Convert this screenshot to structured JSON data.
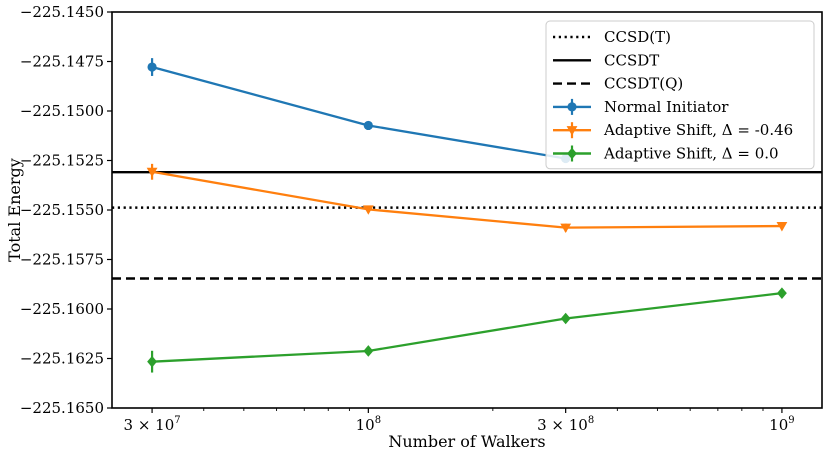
{
  "chart_data": {
    "type": "line",
    "xlabel": "Number of Walkers",
    "ylabel": "Total Energy",
    "x_scale": "log",
    "xlim": [
      24000000,
      1250000000
    ],
    "ylim": [
      -225.165,
      -225.145
    ],
    "x_ticks": [
      {
        "value": 30000000,
        "label": "3 × 10^7"
      },
      {
        "value": 100000000,
        "label": "10^8"
      },
      {
        "value": 300000000,
        "label": "3 × 10^8"
      },
      {
        "value": 1000000000,
        "label": "10^9"
      }
    ],
    "y_ticks": [
      {
        "value": -225.145,
        "label": "−225.1450"
      },
      {
        "value": -225.1475,
        "label": "−225.1475"
      },
      {
        "value": -225.15,
        "label": "−225.1500"
      },
      {
        "value": -225.1525,
        "label": "−225.1525"
      },
      {
        "value": -225.155,
        "label": "−225.1550"
      },
      {
        "value": -225.1575,
        "label": "−225.1575"
      },
      {
        "value": -225.16,
        "label": "−225.1600"
      },
      {
        "value": -225.1625,
        "label": "−225.1625"
      },
      {
        "value": -225.165,
        "label": "−225.1650"
      }
    ],
    "reference_lines": [
      {
        "name": "CCSD(T)",
        "value": -225.15488,
        "style": "dotted",
        "color": "#000000"
      },
      {
        "name": "CCSDT",
        "value": -225.15309,
        "style": "solid",
        "color": "#000000"
      },
      {
        "name": "CCSDT(Q)",
        "value": -225.15846,
        "style": "dashed",
        "color": "#000000"
      }
    ],
    "series": [
      {
        "name": "Normal Initiator",
        "color": "#1f77b4",
        "marker": "circle",
        "x": [
          30000000,
          100000000,
          300000000
        ],
        "y": [
          -225.14778,
          -225.15073,
          -225.1524
        ],
        "yerr": [
          0.00045,
          0.0001,
          0.0002
        ]
      },
      {
        "name": "Adaptive Shift, Δ = -0.46",
        "color": "#ff7f0e",
        "marker": "triangle-down",
        "x": [
          30000000,
          100000000,
          300000000,
          1000000000
        ],
        "y": [
          -225.15307,
          -225.15497,
          -225.15589,
          -225.15581
        ],
        "yerr": [
          0.0004,
          0.0001,
          0.0002,
          0.0001
        ]
      },
      {
        "name": "Adaptive Shift, Δ =  0.0",
        "color": "#2ca02c",
        "marker": "diamond",
        "x": [
          30000000,
          100000000,
          300000000,
          1000000000
        ],
        "y": [
          -225.16266,
          -225.16212,
          -225.16048,
          -225.1592
        ],
        "yerr": [
          0.00055,
          0.0002,
          0.0002,
          0.0002
        ]
      }
    ],
    "legend_position": "top-right"
  }
}
